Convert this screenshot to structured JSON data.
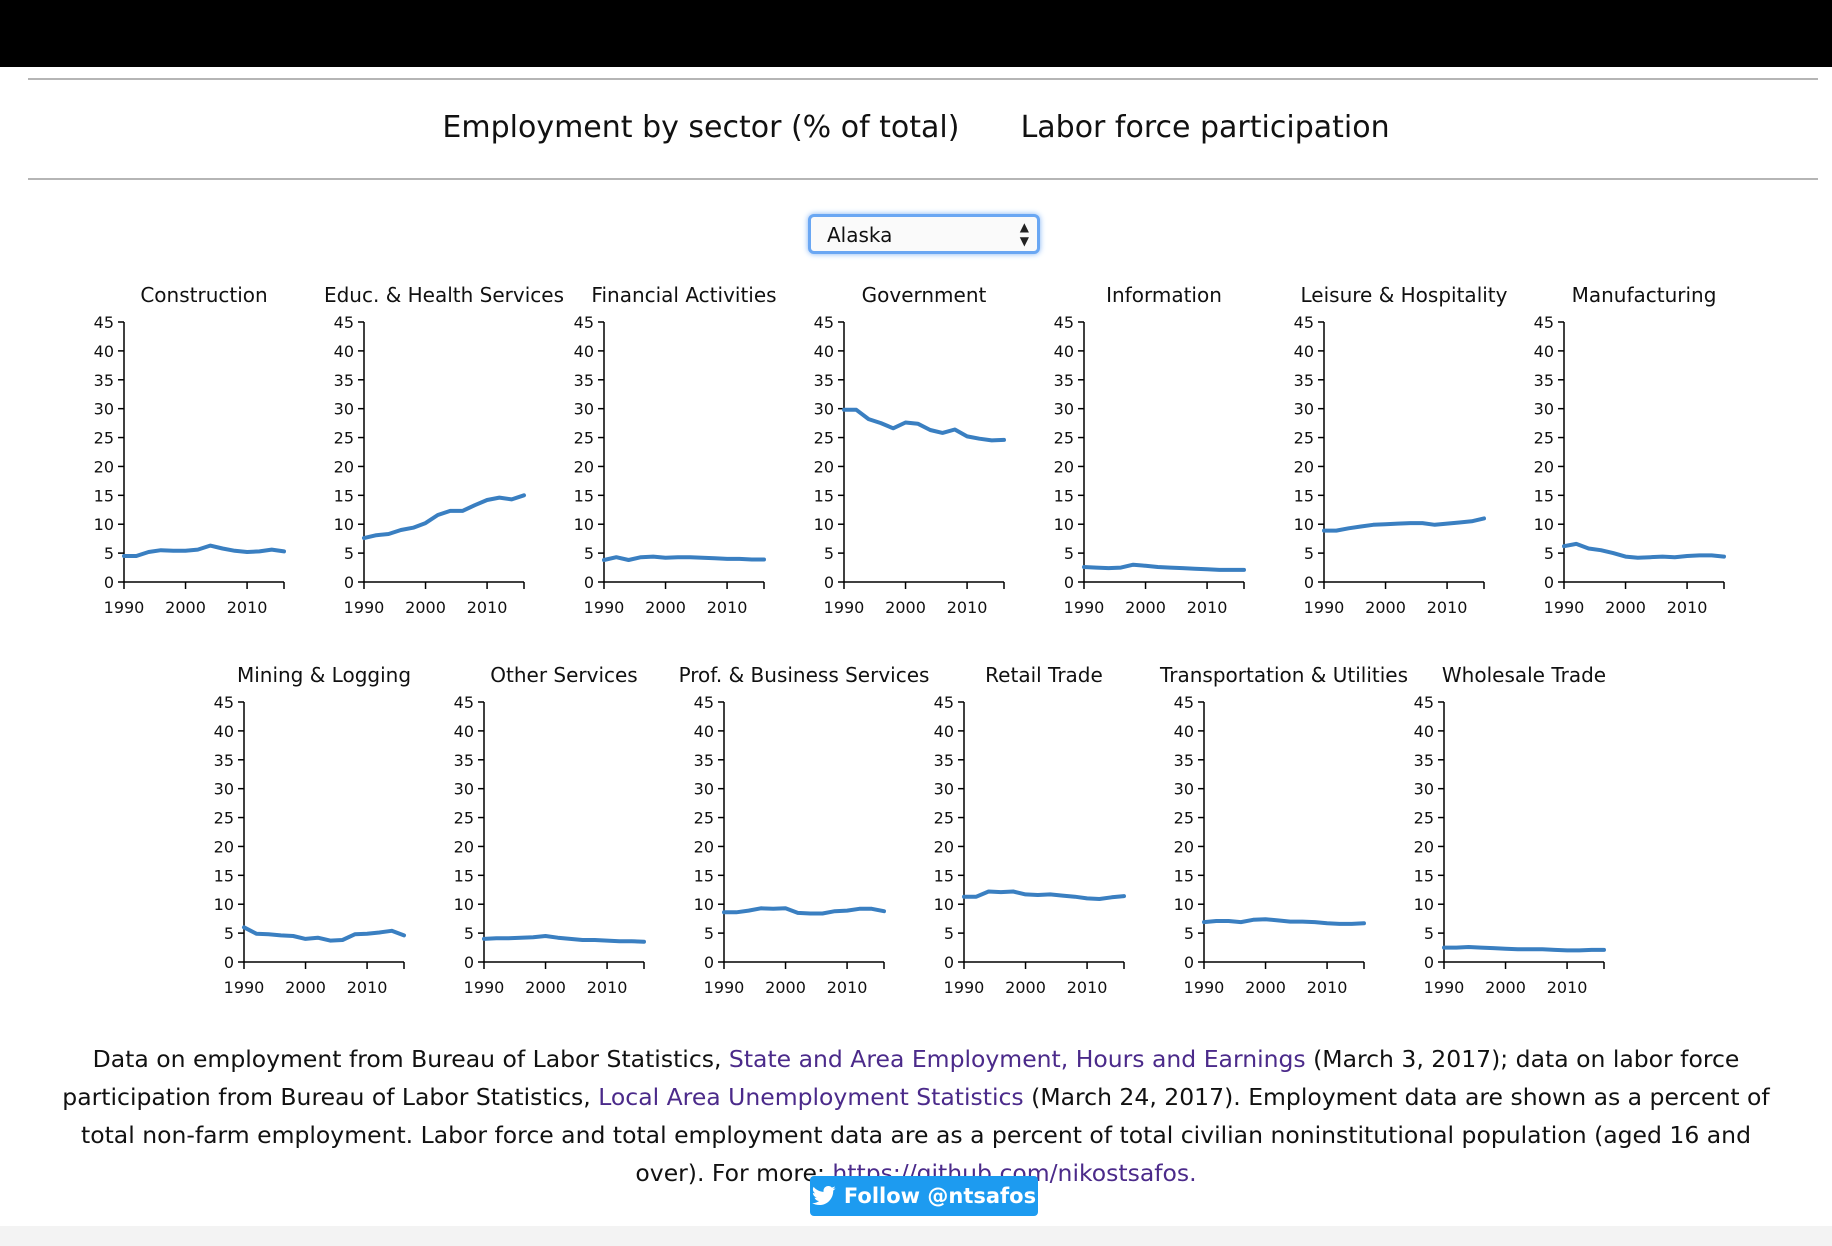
{
  "nav": {
    "tab1": "Employment by sector (% of total)",
    "tab2": "Labor force participation"
  },
  "select": {
    "value": "Alaska"
  },
  "chart_data": [
    {
      "type": "line",
      "title": "Construction",
      "xlim": [
        1990,
        2016
      ],
      "ylim": [
        0,
        45
      ],
      "xticks": [
        1990,
        2000,
        2010
      ],
      "yticks": [
        0,
        5,
        10,
        15,
        20,
        25,
        30,
        35,
        40,
        45
      ],
      "x": [
        1990,
        1992,
        1994,
        1996,
        1998,
        2000,
        2002,
        2004,
        2006,
        2008,
        2010,
        2012,
        2014,
        2016
      ],
      "y": [
        4.5,
        4.5,
        5.2,
        5.5,
        5.4,
        5.4,
        5.6,
        6.3,
        5.8,
        5.4,
        5.2,
        5.3,
        5.6,
        5.3
      ],
      "series": [
        {
          "x": [
            1990,
            1992,
            1994,
            1996,
            1998,
            2000,
            2002,
            2004,
            2006,
            2008,
            2010,
            2012,
            2014,
            2016
          ],
          "y": [
            4.5,
            4.5,
            5.2,
            5.5,
            5.4,
            5.4,
            5.6,
            6.3,
            5.8,
            5.4,
            5.2,
            5.3,
            5.6,
            5.3
          ]
        }
      ]
    },
    {
      "type": "line",
      "title": "Educ. & Health Services",
      "xlim": [
        1990,
        2016
      ],
      "ylim": [
        0,
        45
      ],
      "xticks": [
        1990,
        2000,
        2010
      ],
      "yticks": [
        0,
        5,
        10,
        15,
        20,
        25,
        30,
        35,
        40,
        45
      ],
      "series": [
        {
          "x": [
            1990,
            1992,
            1994,
            1996,
            1998,
            2000,
            2002,
            2004,
            2006,
            2008,
            2010,
            2012,
            2014,
            2016
          ],
          "y": [
            7.6,
            8.1,
            8.3,
            9.0,
            9.4,
            10.2,
            11.6,
            12.3,
            12.3,
            13.3,
            14.2,
            14.6,
            14.3,
            15.0
          ]
        }
      ]
    },
    {
      "type": "line",
      "title": "Financial Activities",
      "xlim": [
        1990,
        2016
      ],
      "ylim": [
        0,
        45
      ],
      "xticks": [
        1990,
        2000,
        2010
      ],
      "yticks": [
        0,
        5,
        10,
        15,
        20,
        25,
        30,
        35,
        40,
        45
      ],
      "series": [
        {
          "x": [
            1990,
            1992,
            1994,
            1996,
            1998,
            2000,
            2002,
            2004,
            2006,
            2008,
            2010,
            2012,
            2014,
            2016
          ],
          "y": [
            3.8,
            4.3,
            3.8,
            4.3,
            4.4,
            4.2,
            4.3,
            4.3,
            4.2,
            4.1,
            4.0,
            4.0,
            3.9,
            3.9
          ]
        }
      ]
    },
    {
      "type": "line",
      "title": "Government",
      "xlim": [
        1990,
        2016
      ],
      "ylim": [
        0,
        45
      ],
      "xticks": [
        1990,
        2000,
        2010
      ],
      "yticks": [
        0,
        5,
        10,
        15,
        20,
        25,
        30,
        35,
        40,
        45
      ],
      "series": [
        {
          "x": [
            1990,
            1992,
            1994,
            1996,
            1998,
            2000,
            2002,
            2004,
            2006,
            2008,
            2010,
            2012,
            2014,
            2016
          ],
          "y": [
            29.8,
            29.8,
            28.2,
            27.5,
            26.6,
            27.6,
            27.4,
            26.3,
            25.8,
            26.4,
            25.2,
            24.8,
            24.5,
            24.6
          ]
        }
      ]
    },
    {
      "type": "line",
      "title": "Information",
      "xlim": [
        1990,
        2016
      ],
      "ylim": [
        0,
        45
      ],
      "xticks": [
        1990,
        2000,
        2010
      ],
      "yticks": [
        0,
        5,
        10,
        15,
        20,
        25,
        30,
        35,
        40,
        45
      ],
      "series": [
        {
          "x": [
            1990,
            1992,
            1994,
            1996,
            1998,
            2000,
            2002,
            2004,
            2006,
            2008,
            2010,
            2012,
            2014,
            2016
          ],
          "y": [
            2.6,
            2.5,
            2.4,
            2.5,
            3.0,
            2.8,
            2.6,
            2.5,
            2.4,
            2.3,
            2.2,
            2.1,
            2.1,
            2.1
          ]
        }
      ]
    },
    {
      "type": "line",
      "title": "Leisure & Hospitality",
      "xlim": [
        1990,
        2016
      ],
      "ylim": [
        0,
        45
      ],
      "xticks": [
        1990,
        2000,
        2010
      ],
      "yticks": [
        0,
        5,
        10,
        15,
        20,
        25,
        30,
        35,
        40,
        45
      ],
      "series": [
        {
          "x": [
            1990,
            1992,
            1994,
            1996,
            1998,
            2000,
            2002,
            2004,
            2006,
            2008,
            2010,
            2012,
            2014,
            2016
          ],
          "y": [
            8.9,
            8.9,
            9.3,
            9.6,
            9.9,
            10.0,
            10.1,
            10.2,
            10.2,
            9.9,
            10.1,
            10.3,
            10.5,
            11.0
          ]
        }
      ]
    },
    {
      "type": "line",
      "title": "Manufacturing",
      "xlim": [
        1990,
        2016
      ],
      "ylim": [
        0,
        45
      ],
      "xticks": [
        1990,
        2000,
        2010
      ],
      "yticks": [
        0,
        5,
        10,
        15,
        20,
        25,
        30,
        35,
        40,
        45
      ],
      "series": [
        {
          "x": [
            1990,
            1992,
            1994,
            1996,
            1998,
            2000,
            2002,
            2004,
            2006,
            2008,
            2010,
            2012,
            2014,
            2016
          ],
          "y": [
            6.2,
            6.6,
            5.8,
            5.5,
            5.0,
            4.4,
            4.2,
            4.3,
            4.4,
            4.3,
            4.5,
            4.6,
            4.6,
            4.4
          ]
        }
      ]
    },
    {
      "type": "line",
      "title": "Mining & Logging",
      "xlim": [
        1990,
        2016
      ],
      "ylim": [
        0,
        45
      ],
      "xticks": [
        1990,
        2000,
        2010
      ],
      "yticks": [
        0,
        5,
        10,
        15,
        20,
        25,
        30,
        35,
        40,
        45
      ],
      "series": [
        {
          "x": [
            1990,
            1992,
            1994,
            1996,
            1998,
            2000,
            2002,
            2004,
            2006,
            2008,
            2010,
            2012,
            2014,
            2016
          ],
          "y": [
            6.0,
            4.9,
            4.8,
            4.6,
            4.5,
            4.0,
            4.2,
            3.7,
            3.8,
            4.8,
            4.9,
            5.1,
            5.4,
            4.6
          ]
        }
      ]
    },
    {
      "type": "line",
      "title": "Other Services",
      "xlim": [
        1990,
        2016
      ],
      "ylim": [
        0,
        45
      ],
      "xticks": [
        1990,
        2000,
        2010
      ],
      "yticks": [
        0,
        5,
        10,
        15,
        20,
        25,
        30,
        35,
        40,
        45
      ],
      "series": [
        {
          "x": [
            1990,
            1992,
            1994,
            1996,
            1998,
            2000,
            2002,
            2004,
            2006,
            2008,
            2010,
            2012,
            2014,
            2016
          ],
          "y": [
            4.0,
            4.1,
            4.1,
            4.2,
            4.3,
            4.5,
            4.2,
            4.0,
            3.8,
            3.8,
            3.7,
            3.6,
            3.6,
            3.5
          ]
        }
      ]
    },
    {
      "type": "line",
      "title": "Prof. & Business Services",
      "xlim": [
        1990,
        2016
      ],
      "ylim": [
        0,
        45
      ],
      "xticks": [
        1990,
        2000,
        2010
      ],
      "yticks": [
        0,
        5,
        10,
        15,
        20,
        25,
        30,
        35,
        40,
        45
      ],
      "series": [
        {
          "x": [
            1990,
            1992,
            1994,
            1996,
            1998,
            2000,
            2002,
            2004,
            2006,
            2008,
            2010,
            2012,
            2014,
            2016
          ],
          "y": [
            8.6,
            8.6,
            8.9,
            9.3,
            9.2,
            9.3,
            8.5,
            8.4,
            8.4,
            8.8,
            8.9,
            9.2,
            9.2,
            8.8
          ]
        }
      ]
    },
    {
      "type": "line",
      "title": "Retail Trade",
      "xlim": [
        1990,
        2016
      ],
      "ylim": [
        0,
        45
      ],
      "xticks": [
        1990,
        2000,
        2010
      ],
      "yticks": [
        0,
        5,
        10,
        15,
        20,
        25,
        30,
        35,
        40,
        45
      ],
      "series": [
        {
          "x": [
            1990,
            1992,
            1994,
            1996,
            1998,
            2000,
            2002,
            2004,
            2006,
            2008,
            2010,
            2012,
            2014,
            2016
          ],
          "y": [
            11.3,
            11.3,
            12.2,
            12.1,
            12.2,
            11.7,
            11.6,
            11.7,
            11.5,
            11.3,
            11.0,
            10.9,
            11.2,
            11.4
          ]
        }
      ]
    },
    {
      "type": "line",
      "title": "Transportation & Utilities",
      "xlim": [
        1990,
        2016
      ],
      "ylim": [
        0,
        45
      ],
      "xticks": [
        1990,
        2000,
        2010
      ],
      "yticks": [
        0,
        5,
        10,
        15,
        20,
        25,
        30,
        35,
        40,
        45
      ],
      "series": [
        {
          "x": [
            1990,
            1992,
            1994,
            1996,
            1998,
            2000,
            2002,
            2004,
            2006,
            2008,
            2010,
            2012,
            2014,
            2016
          ],
          "y": [
            6.9,
            7.1,
            7.1,
            6.9,
            7.3,
            7.4,
            7.2,
            7.0,
            7.0,
            6.9,
            6.7,
            6.6,
            6.6,
            6.7
          ]
        }
      ]
    },
    {
      "type": "line",
      "title": "Wholesale Trade",
      "xlim": [
        1990,
        2016
      ],
      "ylim": [
        0,
        45
      ],
      "xticks": [
        1990,
        2000,
        2010
      ],
      "yticks": [
        0,
        5,
        10,
        15,
        20,
        25,
        30,
        35,
        40,
        45
      ],
      "series": [
        {
          "x": [
            1990,
            1992,
            1994,
            1996,
            1998,
            2000,
            2002,
            2004,
            2006,
            2008,
            2010,
            2012,
            2014,
            2016
          ],
          "y": [
            2.5,
            2.5,
            2.6,
            2.5,
            2.4,
            2.3,
            2.2,
            2.2,
            2.2,
            2.1,
            2.0,
            2.0,
            2.1,
            2.1
          ]
        }
      ]
    }
  ],
  "colors": {
    "line": "#3a7fc1",
    "axis": "#000000",
    "link": "#4b2a8a",
    "twitter": "#1d9bf0"
  },
  "footer": {
    "t1": "Data on employment from Bureau of Labor Statistics, ",
    "link1": "State and Area Employment, Hours and Earnings",
    "t2": " (March 3, 2017); data on labor force participation from Bureau of Labor Statistics, ",
    "link2": "Local Area Unemployment Statistics",
    "t3": " (March 24, 2017). Employment data are shown as a percent of total non-farm employment. Labor force and total employment data are as a percent of total civilian noninstitutional population (aged 16 and over). For more: ",
    "link3": "https://github.com/nikostsafos."
  },
  "follow": {
    "label": "Follow @ntsafos",
    "icon": "twitter-bird-icon"
  }
}
